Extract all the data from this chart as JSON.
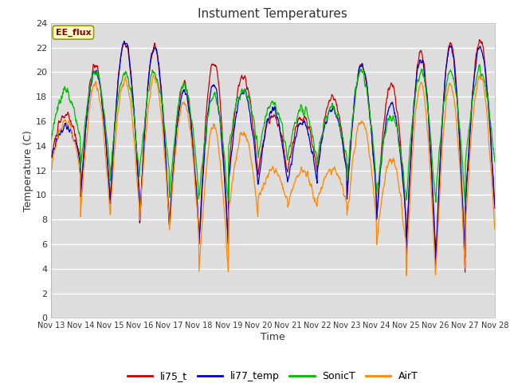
{
  "title": "Instument Temperatures",
  "xlabel": "Time",
  "ylabel": "Temperature (C)",
  "ylim": [
    0,
    24
  ],
  "yticks": [
    0,
    2,
    4,
    6,
    8,
    10,
    12,
    14,
    16,
    18,
    20,
    22,
    24
  ],
  "x_labels": [
    "Nov 13",
    "Nov 14",
    "Nov 15",
    "Nov 16",
    "Nov 17",
    "Nov 18",
    "Nov 19",
    "Nov 20",
    "Nov 21",
    "Nov 22",
    "Nov 23",
    "Nov 24",
    "Nov 25",
    "Nov 26",
    "Nov 27",
    "Nov 28"
  ],
  "annotation_text": "EE_flux",
  "annotation_bg": "#ffffcc",
  "annotation_border": "#999900",
  "colors": {
    "li75_t": "#cc0000",
    "li77_temp": "#0000cc",
    "SonicT": "#00bb00",
    "AirT": "#ff8800"
  },
  "plot_bg": "#dddddd",
  "fig_bg": "#ffffff",
  "grid_color": "#ffffff",
  "legend_labels": [
    "li75_t",
    "li77_temp",
    "SonicT",
    "AirT"
  ]
}
